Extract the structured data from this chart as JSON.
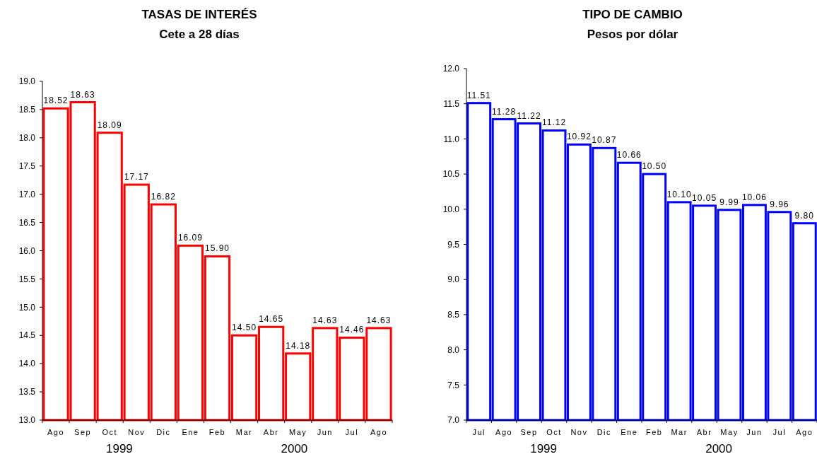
{
  "chart_data": [
    {
      "type": "bar",
      "title": "TASAS DE INTERÉS",
      "subtitle": "Cete a 28 días",
      "categories": [
        "Ago",
        "Sep",
        "Oct",
        "Nov",
        "Dic",
        "Ene",
        "Feb",
        "Mar",
        "Abr",
        "May",
        "Jun",
        "Jul",
        "Ago"
      ],
      "values": [
        18.52,
        18.63,
        18.09,
        17.17,
        16.82,
        16.09,
        15.9,
        14.5,
        14.65,
        14.18,
        14.63,
        14.46,
        14.63
      ],
      "value_labels": [
        "18.52",
        "18.63",
        "18.09",
        "17.17",
        "16.82",
        "16.09",
        "15.90",
        "14.50",
        "14.65",
        "14.18",
        "14.63",
        "14.46",
        "14.63"
      ],
      "color": "#ff0000",
      "ylim": [
        13,
        19
      ],
      "yticks": [
        {
          "value": 13,
          "label": "13.0"
        },
        13.5,
        {
          "value": 14,
          "label": "14.0"
        },
        14.5,
        {
          "value": 15,
          "label": "15.0"
        },
        15.5,
        {
          "value": 16,
          "label": "16.0"
        },
        16.5,
        {
          "value": 17,
          "label": "17.0"
        },
        17.5,
        {
          "value": 18,
          "label": "18.0"
        },
        18.5,
        {
          "value": 19,
          "label": "19.0"
        }
      ],
      "annotations": [
        "1999",
        "2000"
      ],
      "grid": false
    },
    {
      "type": "bar",
      "title": "TIPO DE CAMBIO",
      "subtitle": "Pesos por dólar",
      "categories": [
        "Jul",
        "Ago",
        "Sep",
        "Oct",
        "Nov",
        "Dic",
        "Ene",
        "Feb",
        "Mar",
        "Abr",
        "May",
        "Jun",
        "Jul",
        "Ago"
      ],
      "values": [
        11.51,
        11.28,
        11.22,
        11.12,
        10.92,
        10.87,
        10.66,
        10.5,
        10.1,
        10.05,
        9.99,
        10.06,
        9.96,
        9.8
      ],
      "value_labels": [
        "11.51",
        "11.28",
        "11.22",
        "11.12",
        "10.92",
        "10.87",
        "10.66",
        "10.50",
        "10.10",
        "10.05",
        "9.99",
        "10.06",
        "9.96",
        "9.80"
      ],
      "color": "#0000ff",
      "ylim": [
        7,
        12
      ],
      "yticks": [
        {
          "value": 7,
          "label": "7.0"
        },
        7.5,
        {
          "value": 8,
          "label": "8.0"
        },
        8.5,
        {
          "value": 9,
          "label": "9.0"
        },
        9.5,
        {
          "value": 10,
          "label": "10.0"
        },
        10.5,
        {
          "value": 11,
          "label": "11.0"
        },
        11.5,
        {
          "value": 12,
          "label": "12.0"
        }
      ],
      "annotations": [
        "1999",
        "2000"
      ],
      "grid": false
    }
  ]
}
